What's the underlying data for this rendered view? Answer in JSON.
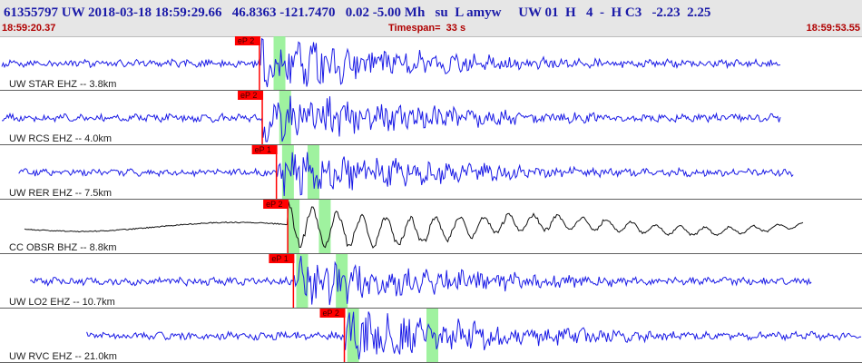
{
  "header": {
    "title": "61355797 UW 2018-03-18 18:59:29.66   46.8363 -121.7470   0.02 -5.00 Mh   su  L amyw     UW 01  H   4  -  H C3   -2.23  2.25",
    "start_time": "18:59:20.37",
    "timespan": "Timespan=  33 s",
    "end_time": "18:59:53.55"
  },
  "colors": {
    "trace": "#1a1ae6",
    "trace_bb": "#111111",
    "pick": "#ff0000",
    "window": "#8ef08e",
    "divider": "#606060"
  },
  "chart_data": {
    "type": "line",
    "traces": [
      {
        "label": "UW STAR EHZ -- 3.8km",
        "pick": "eP 2",
        "color": "blue",
        "start_s": 0.0,
        "end_s": 27.5,
        "p_s": 9.1,
        "win1_s": 9.6,
        "win2_s": null,
        "amp": 1.0
      },
      {
        "label": "UW RCS EHZ -- 4.0km",
        "pick": "eP 2",
        "color": "blue",
        "start_s": 0.0,
        "end_s": 27.5,
        "p_s": 9.2,
        "win1_s": 9.8,
        "win2_s": null,
        "amp": 1.0
      },
      {
        "label": "UW RER EHZ -- 7.5km",
        "pick": "eP 1",
        "color": "blue",
        "start_s": 0.6,
        "end_s": 28.0,
        "p_s": 9.7,
        "win1_s": 9.9,
        "win2_s": 10.8,
        "amp": 0.9
      },
      {
        "label": "CC OBSR BHZ -- 8.8km",
        "pick": "eP 2",
        "color": "black",
        "start_s": 0.8,
        "end_s": 28.3,
        "p_s": 10.1,
        "win1_s": 10.1,
        "win2_s": 11.2,
        "amp": 0.9
      },
      {
        "label": "UW LO2 EHZ -- 10.7km",
        "pick": "eP 1",
        "color": "blue",
        "start_s": 1.0,
        "end_s": 28.6,
        "p_s": 10.3,
        "win1_s": 10.4,
        "win2_s": 11.8,
        "amp": 1.0
      },
      {
        "label": "UW RVC EHZ -- 21.0km",
        "pick": "eP 2",
        "color": "blue",
        "start_s": 3.0,
        "end_s": 30.4,
        "p_s": 12.1,
        "win1_s": 12.2,
        "win2_s": 15.0,
        "amp": 1.0
      }
    ]
  }
}
